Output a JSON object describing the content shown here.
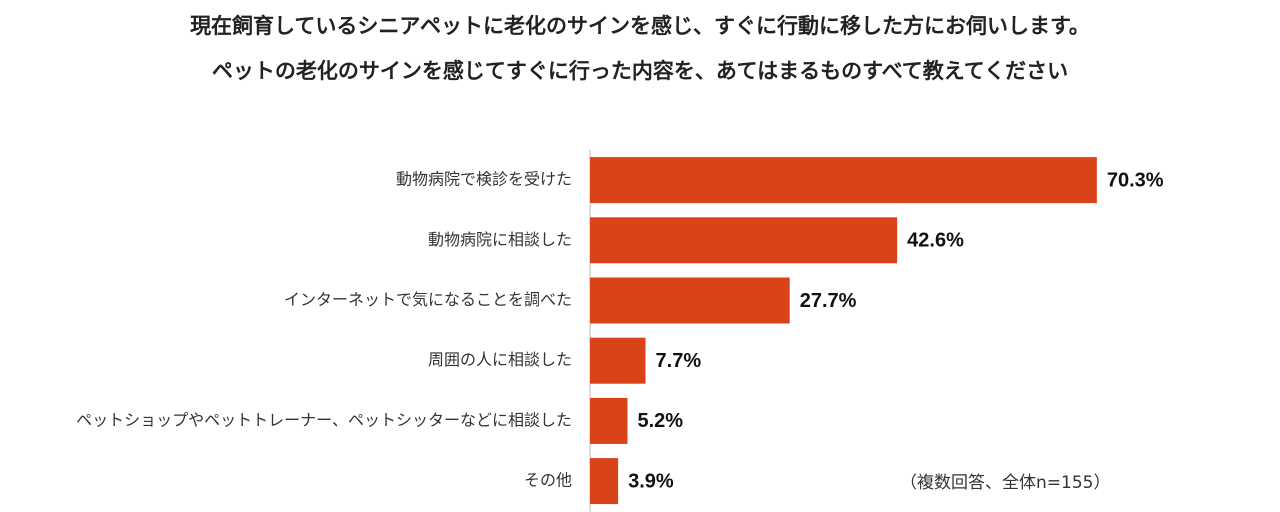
{
  "chart_data": {
    "type": "bar",
    "orientation": "horizontal",
    "title": [
      "現在飼育しているシニアペットに老化のサインを感じ、すぐに行動に移した方にお伺いします。",
      "ペットの老化のサインを感じてすぐに行った内容を、あてはまるものすべて教えてください"
    ],
    "categories": [
      "動物病院で検診を受けた",
      "動物病院に相談した",
      "インターネットで気になることを調べた",
      "周囲の人に相談した",
      "ペットショップやペットトレーナー、ペットシッターなどに相談した",
      "その他"
    ],
    "values": [
      70.3,
      42.6,
      27.7,
      7.7,
      5.2,
      3.9
    ],
    "value_labels": [
      "70.3%",
      "42.6%",
      "27.7%",
      "7.7%",
      "5.2%",
      "3.9%"
    ],
    "color": "#d9431a",
    "annotation": "（複数回答、全体n=155）"
  }
}
